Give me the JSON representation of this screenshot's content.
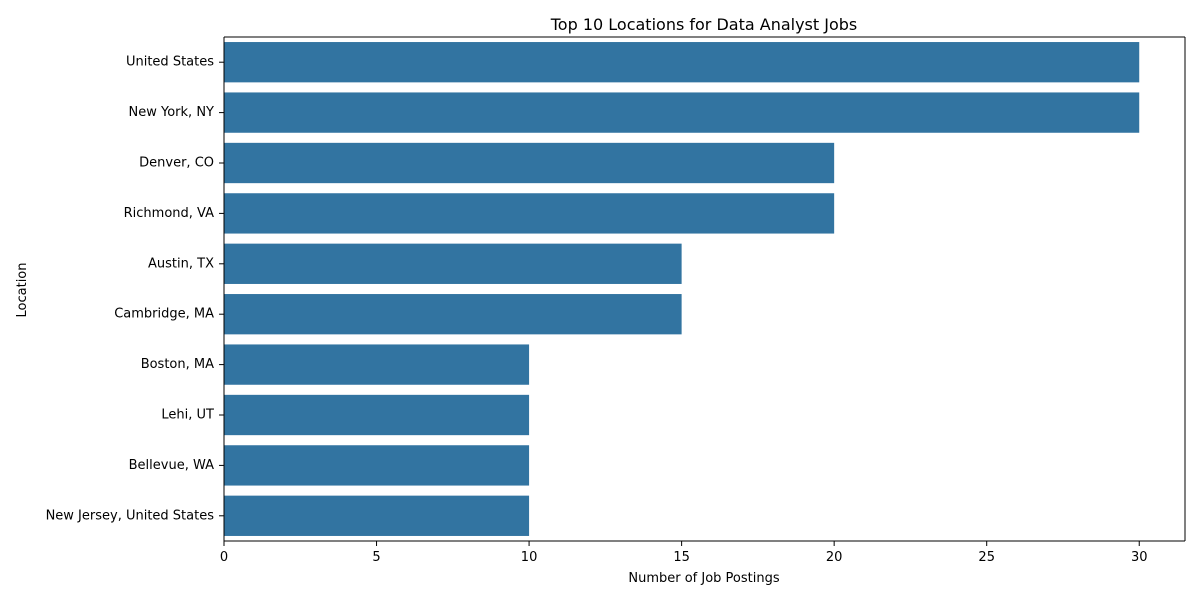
{
  "chart_data": {
    "type": "bar",
    "orientation": "horizontal",
    "title": "Top 10 Locations for Data Analyst Jobs",
    "xlabel": "Number of Job Postings",
    "ylabel": "Location",
    "categories": [
      "United States",
      "New York, NY",
      "Denver, CO",
      "Richmond, VA",
      "Austin, TX",
      "Cambridge, MA",
      "Boston, MA",
      "Lehi, UT",
      "Bellevue, WA",
      "New Jersey, United States"
    ],
    "values": [
      30,
      30,
      20,
      20,
      15,
      15,
      10,
      10,
      10,
      10
    ],
    "xlim": [
      0,
      31.5
    ],
    "xticks": [
      0,
      5,
      10,
      15,
      20,
      25,
      30
    ],
    "grid": false,
    "legend": "none",
    "bar_color": "#3274a1"
  }
}
